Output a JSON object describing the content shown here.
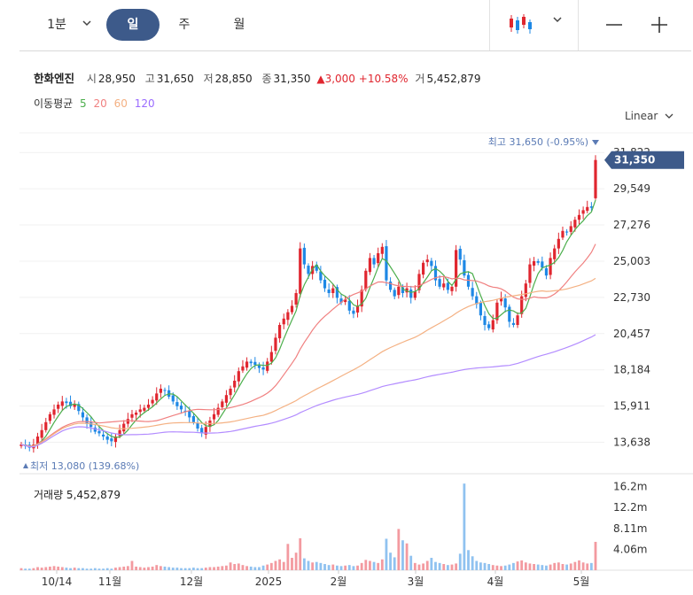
{
  "toolbar": {
    "interval": "1분",
    "tabs": [
      "일",
      "주",
      "월"
    ],
    "active_tab": "일",
    "chart_type_icon": "candlestick-icon",
    "zoom_out": "—",
    "zoom_in": "+"
  },
  "stock": {
    "name": "한화엔진",
    "open_label": "시",
    "open": "28,950",
    "high_label": "고",
    "high": "31,650",
    "low_label": "저",
    "low": "28,850",
    "close_label": "종",
    "close": "31,350",
    "change": "▲3,000",
    "change_pct": "+10.58%",
    "volume_label": "거",
    "volume": "5,452,879"
  },
  "moving_average": {
    "label": "이동평균",
    "periods": [
      "5",
      "20",
      "60",
      "120"
    ],
    "colors": [
      "#4cae4c",
      "#f08080",
      "#f4b183",
      "#b38cff"
    ]
  },
  "scale": "Linear",
  "colors": {
    "up": "#e0262f",
    "down": "#1e88e5",
    "accent": "#3d5a8a"
  },
  "chart_data": {
    "type": "candlestick",
    "y_ticks": [
      "31,822",
      "29,549",
      "27,276",
      "25,003",
      "22,730",
      "20,457",
      "18,184",
      "15,911",
      "13,638"
    ],
    "ylim": [
      12500,
      32500
    ],
    "current_price": "31,350",
    "high_marker": "최고 31,650 (-0.95%)",
    "low_marker": "최저 13,080 (139.68%)",
    "x_labels": [
      "10/14",
      "11월",
      "12월",
      "2025",
      "2월",
      "3월",
      "4월",
      "5월"
    ],
    "volume_title": "거래량 5,452,879",
    "volume_ticks": [
      "16.2m",
      "12.2m",
      "8.11m",
      "4.06m"
    ],
    "volume_max": 17000000,
    "close": [
      13500,
      13400,
      13300,
      13500,
      14000,
      14400,
      14900,
      15400,
      15700,
      16000,
      16200,
      16100,
      15900,
      16000,
      15600,
      15200,
      14800,
      14600,
      14300,
      14200,
      14000,
      13800,
      13700,
      14000,
      14400,
      14800,
      15100,
      15400,
      15500,
      15700,
      15800,
      16000,
      16300,
      16700,
      17000,
      16900,
      16500,
      16200,
      15900,
      15700,
      15600,
      15200,
      14900,
      14500,
      14200,
      14600,
      15000,
      15400,
      15800,
      16200,
      16600,
      17000,
      17500,
      18100,
      18400,
      18700,
      18600,
      18500,
      18300,
      18200,
      18700,
      19300,
      20200,
      21000,
      21400,
      21800,
      22200,
      23000,
      25800,
      24800,
      24200,
      24700,
      24400,
      23800,
      23300,
      23000,
      23300,
      22700,
      22400,
      22600,
      21900,
      21700,
      22200,
      23200,
      24400,
      25200,
      24800,
      25500,
      25900,
      23800,
      23200,
      22800,
      23400,
      23000,
      23300,
      22700,
      23100,
      24200,
      24900,
      25100,
      24700,
      23800,
      23400,
      23600,
      23200,
      23400,
      25700,
      25100,
      24100,
      23400,
      22800,
      22300,
      21600,
      21000,
      20800,
      21300,
      22400,
      22700,
      22100,
      21200,
      21000,
      21600,
      22800,
      23600,
      24800,
      25000,
      24900,
      24600,
      24100,
      25200,
      25800,
      26400,
      26900,
      26800,
      27200,
      27600,
      27900,
      28200,
      28400,
      28350,
      31350
    ],
    "volume": [
      400000,
      300000,
      300000,
      400000,
      600000,
      500000,
      600000,
      700000,
      800000,
      700000,
      600000,
      500000,
      400000,
      500000,
      400000,
      400000,
      300000,
      300000,
      400000,
      300000,
      300000,
      400000,
      300000,
      500000,
      600000,
      700000,
      800000,
      1800000,
      700000,
      600000,
      500000,
      600000,
      700000,
      1000000,
      800000,
      700000,
      600000,
      500000,
      500000,
      400000,
      400000,
      400000,
      500000,
      400000,
      400000,
      500000,
      600000,
      600000,
      700000,
      800000,
      900000,
      1500000,
      1200000,
      1300000,
      1000000,
      800000,
      700000,
      600000,
      600000,
      900000,
      1100000,
      1400000,
      1800000,
      2100000,
      1600000,
      5100000,
      2400000,
      3400000,
      6200000,
      2300000,
      1800000,
      1500000,
      1600000,
      1400000,
      1200000,
      1000000,
      1100000,
      900000,
      800000,
      900000,
      1000000,
      800000,
      900000,
      1400000,
      2000000,
      1800000,
      1600000,
      1400000,
      2100000,
      6100000,
      3400000,
      2500000,
      8000000,
      5800000,
      5200000,
      2800000,
      1400000,
      1100000,
      1300000,
      1800000,
      2400000,
      1600000,
      1400000,
      1200000,
      1000000,
      1100000,
      1300000,
      3200000,
      16800000,
      3900000,
      2700000,
      1800000,
      1500000,
      1400000,
      1200000,
      1000000,
      900000,
      800000,
      900000,
      1100000,
      1400000,
      1700000,
      1900000,
      1500000,
      1300000,
      1200000,
      1100000,
      1000000,
      900000,
      1100000,
      1400000,
      1500000,
      1200000,
      1100000,
      1300000,
      1600000,
      1900000,
      1500000,
      1300000,
      1400000,
      5500000
    ]
  }
}
